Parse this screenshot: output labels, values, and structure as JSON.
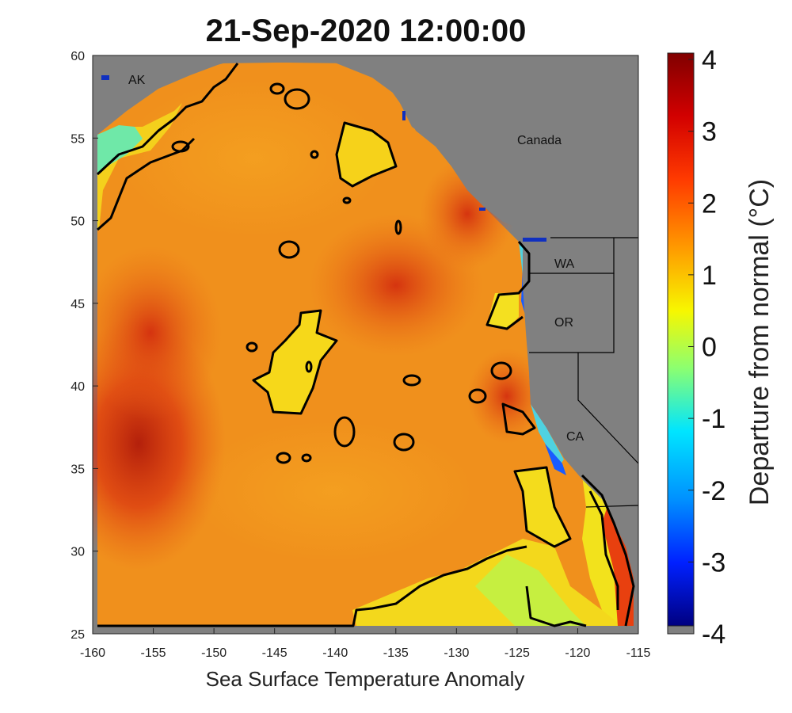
{
  "title": "21-Sep-2020 12:00:00",
  "xlabel": "Sea Surface Temperature Anomaly",
  "colorbar": {
    "label": "Departure from normal (°C)",
    "ticks": [
      "4",
      "3",
      "2",
      "1",
      "0",
      "-1",
      "-2",
      "-3",
      "-4"
    ],
    "range": [
      -4,
      4
    ],
    "colormap": "jet"
  },
  "axes": {
    "x_ticks": [
      "-160",
      "-155",
      "-150",
      "-145",
      "-140",
      "-135",
      "-130",
      "-125",
      "-120",
      "-115"
    ],
    "y_ticks": [
      "60",
      "55",
      "50",
      "45",
      "40",
      "35",
      "30",
      "25"
    ],
    "lon_range": [
      -160,
      -115
    ],
    "lat_range": [
      25,
      60
    ]
  },
  "region_labels": {
    "ak": "AK",
    "canada": "Canada",
    "wa": "WA",
    "or": "OR",
    "ca": "CA"
  },
  "colors": {
    "land": "#808080",
    "contour": "#000000",
    "ocean_warm": "#f09a1e",
    "ocean_hot": "#e04a12"
  }
}
